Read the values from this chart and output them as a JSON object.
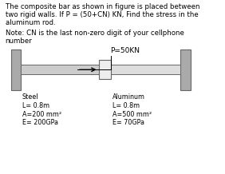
{
  "title_line1": "The composite bar as shown in figure is placed between",
  "title_line2": "two rigid walls. If P = (50+CN) KN, Find the stress in the",
  "title_line3": "aluminum rod.",
  "note_line1": "Note: CN is the last non-zero digit of your cellphone",
  "note_line2": "number",
  "force_label": "P=50KN",
  "steel_label": "Steel",
  "steel_L": "L= 0.8m",
  "steel_A": "A=200 mm²",
  "steel_E": "E= 200GPa",
  "alum_label": "Aluminum",
  "alum_L": "L= 0.8m",
  "alum_A": "A=500 mm²",
  "alum_E": "E= 70GPa",
  "bg_color": "#ffffff",
  "wall_color": "#aaaaaa",
  "bar_color_steel": "#cccccc",
  "bar_color_alum": "#dddddd",
  "junction_color": "#eeeeee",
  "text_color": "#000000",
  "bar_outline": "#666666",
  "title_fontsize": 6.2,
  "label_fontsize": 5.8
}
